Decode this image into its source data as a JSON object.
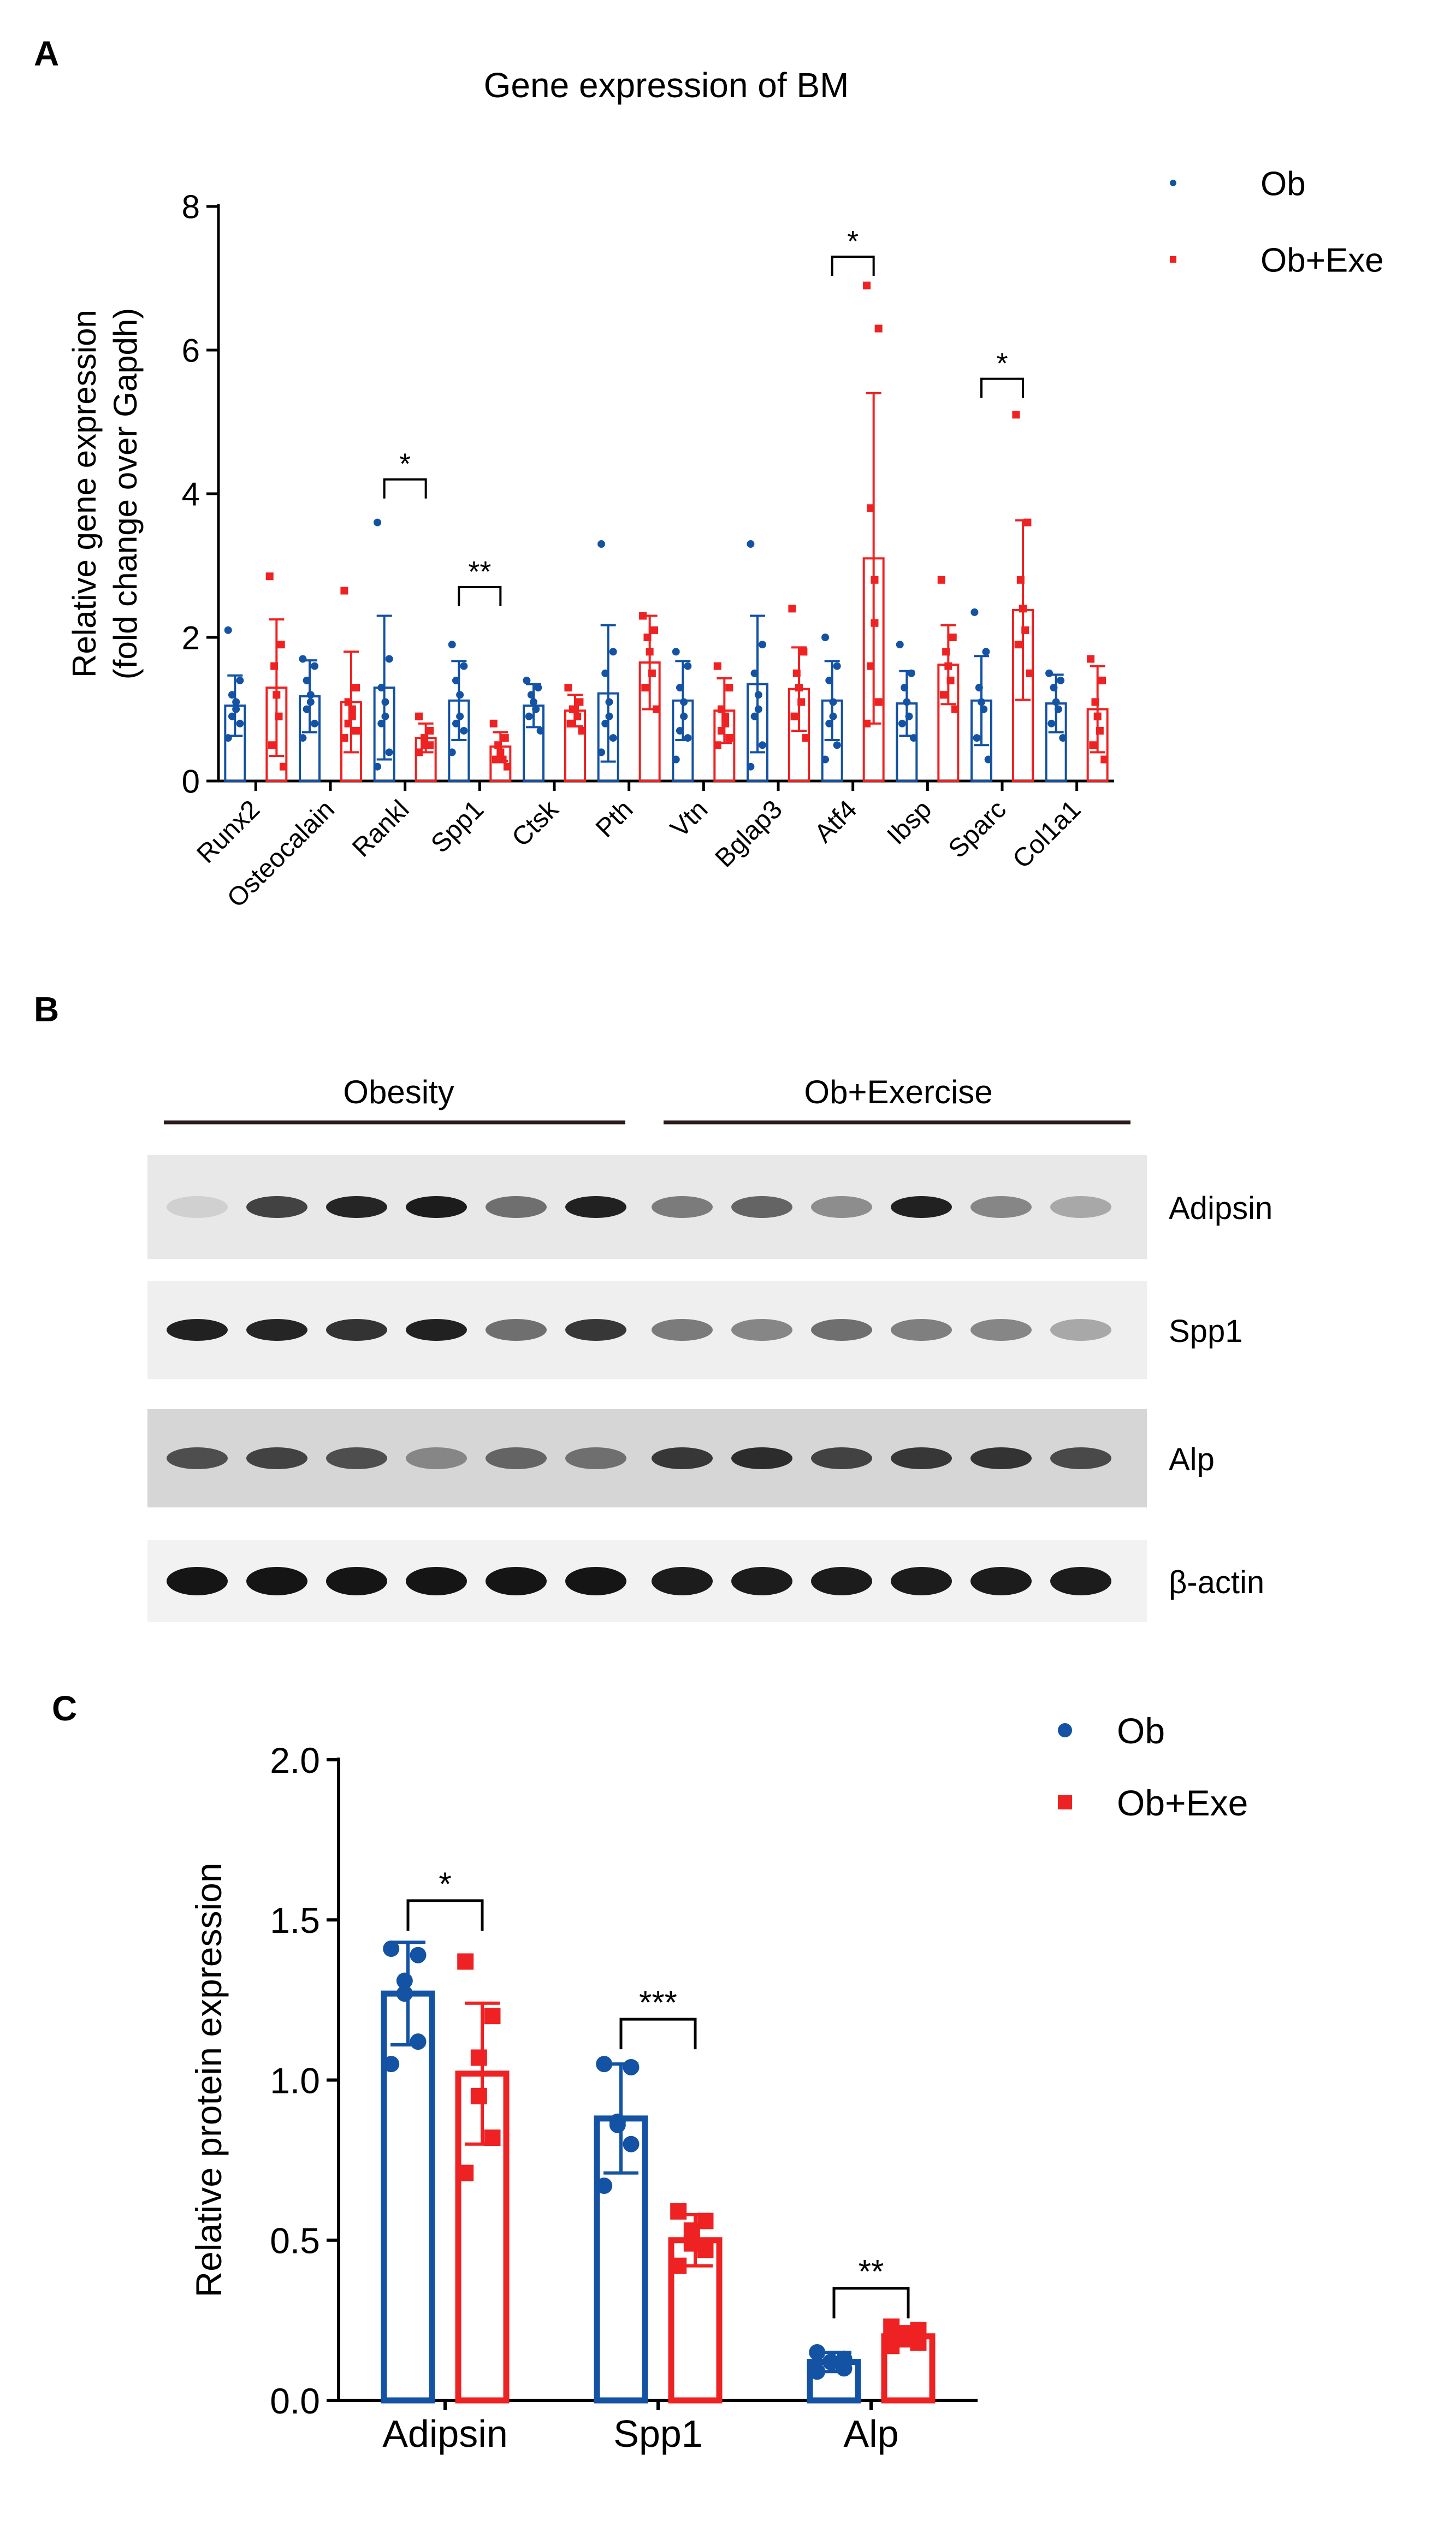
{
  "colors": {
    "ob": "#1452a3",
    "exe": "#ee2222",
    "axis": "#000000",
    "bracket": "#000000"
  },
  "panels": {
    "a": "A",
    "b": "B",
    "c": "C"
  },
  "chart_data": [
    {
      "id": "A",
      "type": "bar",
      "title": "Gene expression of BM",
      "xlabel": "",
      "ylabel": [
        "Relative gene expression",
        "(fold change over Gapdh)"
      ],
      "ylim": [
        0,
        8
      ],
      "yticks": [
        0,
        2,
        4,
        6,
        8
      ],
      "categories": [
        "Runx2",
        "Osteocalain",
        "Rankl",
        "Spp1",
        "Ctsk",
        "Pth",
        "Vtn",
        "Bglap3",
        "Atf4",
        "Ibsp",
        "Sparc",
        "Col1a1"
      ],
      "legend": {
        "position": "top-right",
        "entries": [
          {
            "name": "Ob",
            "symbol": "circle"
          },
          {
            "name": "Ob+Exe",
            "symbol": "square"
          }
        ]
      },
      "series": [
        {
          "name": "Ob",
          "values": [
            1.05,
            1.18,
            1.3,
            1.12,
            1.05,
            1.22,
            1.12,
            1.35,
            1.12,
            1.08,
            1.12,
            1.08
          ],
          "sd": [
            0.42,
            0.5,
            1.0,
            0.55,
            0.3,
            0.95,
            0.55,
            0.95,
            0.55,
            0.45,
            0.62,
            0.4
          ],
          "points": [
            [
              2.1,
              1.4,
              1.2,
              1.1,
              1.0,
              0.9,
              0.8,
              0.6
            ],
            [
              1.7,
              1.6,
              1.4,
              1.2,
              1.1,
              1.0,
              0.8,
              0.6
            ],
            [
              3.6,
              1.7,
              1.3,
              1.1,
              0.9,
              0.8,
              0.4,
              0.2
            ],
            [
              1.9,
              1.6,
              1.4,
              1.2,
              0.9,
              0.8,
              0.7,
              0.4
            ],
            [
              1.4,
              1.3,
              1.2,
              1.1,
              1.0,
              0.9,
              0.7
            ],
            [
              3.3,
              1.8,
              1.5,
              1.1,
              0.9,
              0.8,
              0.6,
              0.4
            ],
            [
              1.8,
              1.6,
              1.3,
              1.1,
              0.9,
              0.7,
              0.6,
              0.3
            ],
            [
              3.3,
              1.9,
              1.5,
              1.2,
              1.0,
              0.9,
              0.5,
              0.2
            ],
            [
              2.0,
              1.6,
              1.4,
              1.1,
              0.9,
              0.8,
              0.5,
              0.3
            ],
            [
              1.9,
              1.5,
              1.3,
              1.1,
              0.9,
              0.8,
              0.6
            ],
            [
              2.35,
              1.8,
              1.3,
              1.1,
              1.0,
              0.6,
              0.3
            ],
            [
              1.5,
              1.4,
              1.3,
              1.1,
              1.0,
              0.8,
              0.6
            ]
          ]
        },
        {
          "name": "Ob+Exe",
          "values": [
            1.3,
            1.1,
            0.6,
            0.48,
            0.98,
            1.65,
            0.98,
            1.28,
            3.1,
            1.62,
            2.38,
            1.0
          ],
          "sd": [
            0.95,
            0.7,
            0.2,
            0.2,
            0.22,
            0.65,
            0.45,
            0.58,
            2.3,
            0.55,
            1.25,
            0.6
          ],
          "points": [
            [
              2.85,
              1.9,
              1.6,
              1.2,
              0.9,
              0.5,
              0.2
            ],
            [
              2.65,
              1.3,
              1.1,
              1.0,
              0.9,
              0.8,
              0.7,
              0.6
            ],
            [
              0.9,
              0.7,
              0.6,
              0.5,
              0.5,
              0.4
            ],
            [
              0.8,
              0.6,
              0.5,
              0.4,
              0.3,
              0.3,
              0.2
            ],
            [
              1.3,
              1.1,
              1.0,
              1.0,
              0.9,
              0.8,
              0.7
            ],
            [
              2.3,
              2.1,
              2.0,
              1.8,
              1.5,
              1.3,
              1.0
            ],
            [
              1.6,
              1.3,
              1.0,
              0.9,
              0.8,
              0.7,
              0.6,
              0.5
            ],
            [
              2.4,
              1.8,
              1.5,
              1.3,
              1.1,
              0.9,
              0.6
            ],
            [
              6.9,
              6.3,
              3.8,
              2.8,
              2.2,
              1.6,
              1.1,
              0.8
            ],
            [
              2.8,
              2.0,
              1.8,
              1.6,
              1.4,
              1.2,
              1.0
            ],
            [
              5.1,
              3.6,
              2.8,
              2.4,
              2.1,
              1.9,
              1.5
            ],
            [
              1.7,
              1.4,
              1.1,
              0.9,
              0.7,
              0.5,
              0.3
            ]
          ]
        }
      ],
      "significance": [
        {
          "category_index": 2,
          "label": "*",
          "y": 4.2
        },
        {
          "category_index": 3,
          "label": "**",
          "y": 2.7
        },
        {
          "category_index": 8,
          "label": "*",
          "y": 7.3
        },
        {
          "category_index": 10,
          "label": "*",
          "y": 5.6
        }
      ]
    },
    {
      "id": "C",
      "type": "bar",
      "title": "",
      "xlabel": "",
      "ylabel": [
        "Relative protein expression"
      ],
      "ylim": [
        0,
        2.0
      ],
      "yticks": [
        0,
        0.5,
        1.0,
        1.5,
        2.0
      ],
      "ytick_labels": [
        "0.0",
        "0.5",
        "1.0",
        "1.5",
        "2.0"
      ],
      "categories": [
        "Adipsin",
        "Spp1",
        "Alp"
      ],
      "legend": {
        "position": "top-right",
        "entries": [
          {
            "name": "Ob",
            "symbol": "circle"
          },
          {
            "name": "Ob+Exe",
            "symbol": "square"
          }
        ]
      },
      "series": [
        {
          "name": "Ob",
          "values": [
            1.27,
            0.88,
            0.12
          ],
          "sd": [
            0.16,
            0.17,
            0.03
          ],
          "points": [
            [
              1.41,
              1.39,
              1.31,
              1.27,
              1.12,
              1.05
            ],
            [
              1.05,
              1.04,
              0.87,
              0.86,
              0.8,
              0.67
            ],
            [
              0.15,
              0.13,
              0.12,
              0.12,
              0.1,
              0.09
            ]
          ]
        },
        {
          "name": "Ob+Exe",
          "values": [
            1.02,
            0.5,
            0.2
          ],
          "sd": [
            0.22,
            0.08,
            0.03
          ],
          "points": [
            [
              1.37,
              1.2,
              1.07,
              0.95,
              0.82,
              0.71
            ],
            [
              0.59,
              0.56,
              0.53,
              0.49,
              0.47,
              0.42
            ],
            [
              0.23,
              0.22,
              0.2,
              0.2,
              0.18,
              0.17
            ]
          ]
        }
      ],
      "significance": [
        {
          "category_index": 0,
          "label": "*",
          "y": 1.56
        },
        {
          "category_index": 1,
          "label": "***",
          "y": 1.19
        },
        {
          "category_index": 2,
          "label": "**",
          "y": 0.35
        }
      ]
    }
  ],
  "western_blot": {
    "groups": [
      "Obesity",
      "Ob+Exercise"
    ],
    "lanes_per_group": 6,
    "rows": [
      {
        "label": "Adipsin",
        "intensities": [
          0.12,
          0.75,
          0.88,
          0.92,
          0.55,
          0.9,
          0.5,
          0.6,
          0.42,
          0.9,
          0.45,
          0.3
        ]
      },
      {
        "label": "Spp1",
        "intensities": [
          0.9,
          0.88,
          0.82,
          0.9,
          0.55,
          0.8,
          0.5,
          0.45,
          0.55,
          0.48,
          0.45,
          0.3
        ]
      },
      {
        "label": "Alp",
        "intensities": [
          0.7,
          0.75,
          0.7,
          0.45,
          0.6,
          0.55,
          0.8,
          0.85,
          0.75,
          0.8,
          0.82,
          0.72
        ]
      },
      {
        "label": "β-actin",
        "intensities": [
          0.95,
          0.95,
          0.95,
          0.95,
          0.95,
          0.95,
          0.92,
          0.92,
          0.92,
          0.92,
          0.92,
          0.92
        ]
      }
    ]
  }
}
